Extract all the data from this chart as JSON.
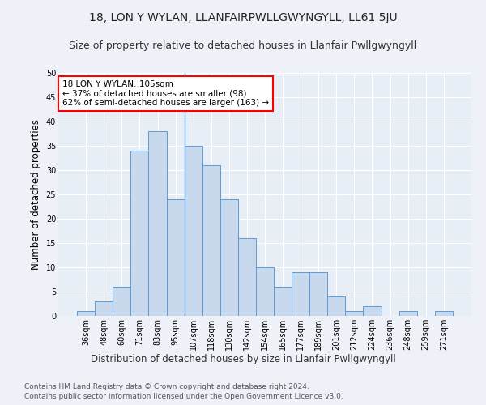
{
  "title": "18, LON Y WYLAN, LLANFAIRPWLLGWYNGYLL, LL61 5JU",
  "subtitle": "Size of property relative to detached houses in Llanfair Pwllgwyngyll",
  "xlabel": "Distribution of detached houses by size in Llanfair Pwllgwyngyll",
  "ylabel": "Number of detached properties",
  "footer_line1": "Contains HM Land Registry data © Crown copyright and database right 2024.",
  "footer_line2": "Contains public sector information licensed under the Open Government Licence v3.0.",
  "annotation_title": "18 LON Y WYLAN: 105sqm",
  "annotation_line1": "← 37% of detached houses are smaller (98)",
  "annotation_line2": "62% of semi-detached houses are larger (163) →",
  "bar_labels": [
    "36sqm",
    "48sqm",
    "60sqm",
    "71sqm",
    "83sqm",
    "95sqm",
    "107sqm",
    "118sqm",
    "130sqm",
    "142sqm",
    "154sqm",
    "165sqm",
    "177sqm",
    "189sqm",
    "201sqm",
    "212sqm",
    "224sqm",
    "236sqm",
    "248sqm",
    "259sqm",
    "271sqm"
  ],
  "bar_values": [
    1,
    3,
    6,
    34,
    38,
    24,
    35,
    31,
    24,
    16,
    10,
    6,
    9,
    9,
    4,
    1,
    2,
    0,
    1,
    0,
    1
  ],
  "bar_color": "#c9d9ed",
  "bar_edge_color": "#5b9bd5",
  "vline_x": 5.5,
  "ylim": [
    0,
    50
  ],
  "yticks": [
    0,
    5,
    10,
    15,
    20,
    25,
    30,
    35,
    40,
    45,
    50
  ],
  "bg_color": "#eef2f8",
  "plot_bg_color": "#e8eef6",
  "grid_color": "#ffffff",
  "title_fontsize": 10,
  "subtitle_fontsize": 9,
  "axis_label_fontsize": 8.5,
  "tick_fontsize": 7,
  "footer_fontsize": 6.5,
  "annotation_fontsize": 7.5
}
